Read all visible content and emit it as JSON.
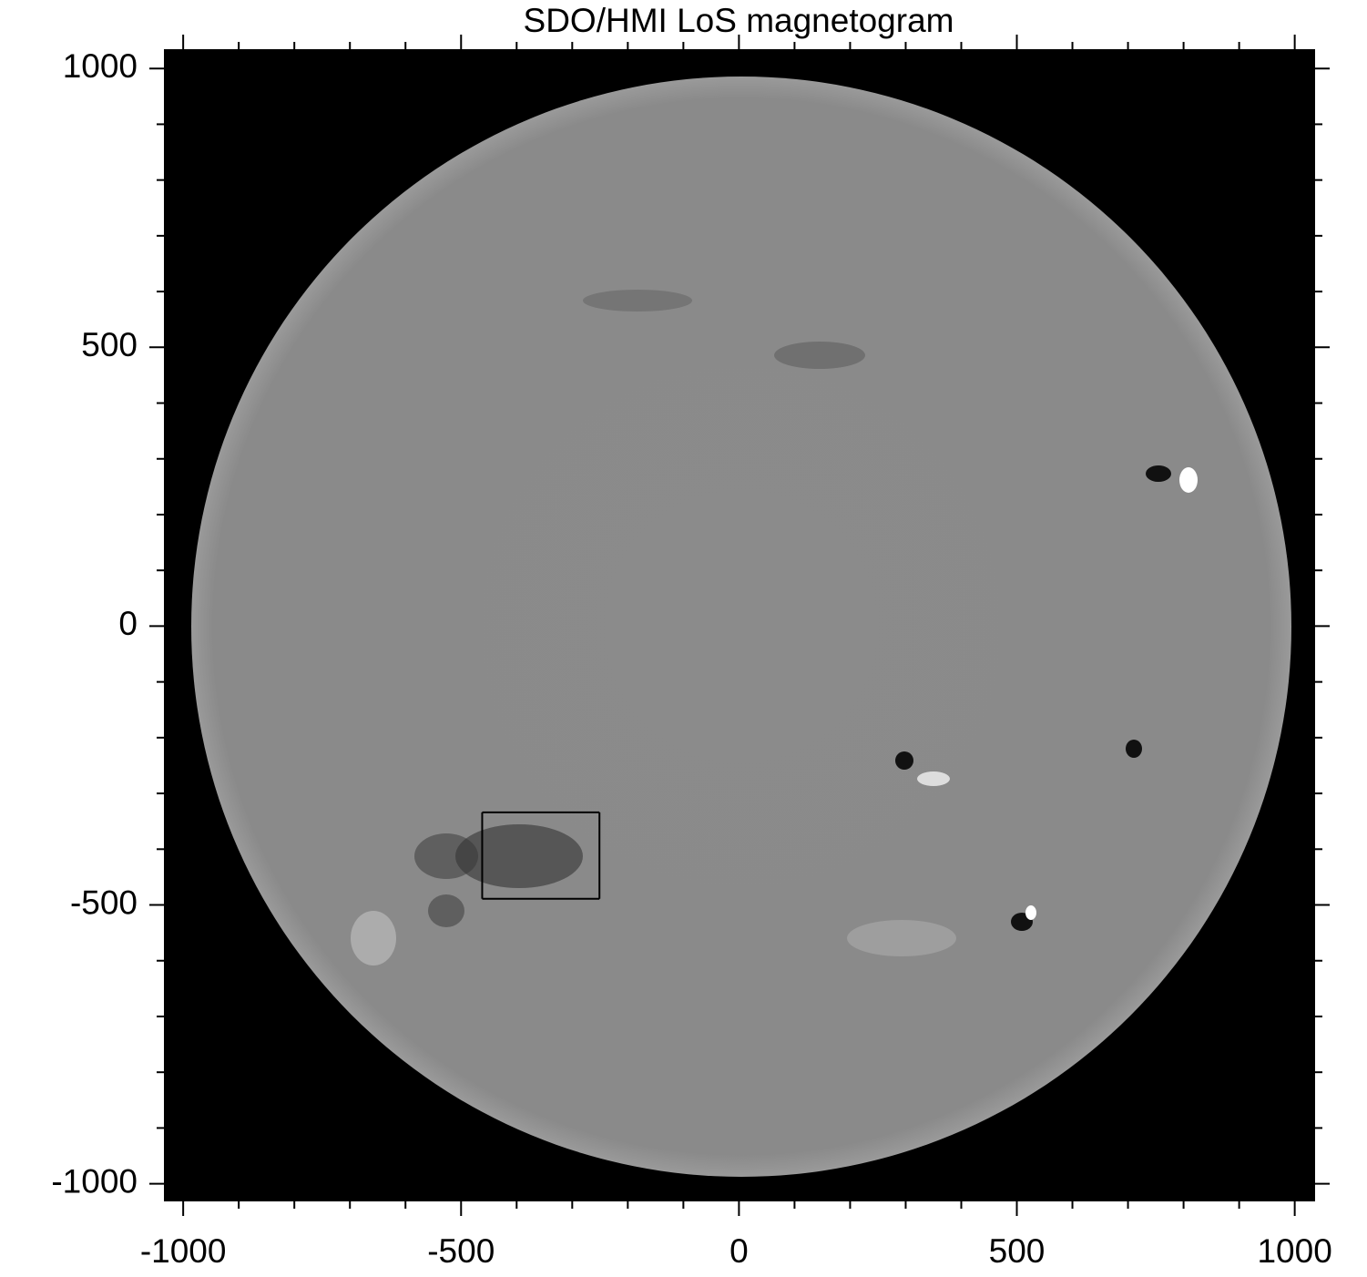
{
  "chart_data": {
    "type": "image",
    "title": "SDO/HMI LoS magnetogram",
    "xlim": [
      -1033,
      1035
    ],
    "ylim": [
      -1030,
      1033
    ],
    "xticks": [
      -1000,
      -500,
      0,
      500,
      1000
    ],
    "yticks": [
      -1000,
      -500,
      0,
      500,
      1000
    ],
    "xminor_ticks": [
      -900,
      -800,
      -700,
      -600,
      -400,
      -300,
      -200,
      -100,
      100,
      200,
      300,
      400,
      600,
      700,
      800,
      900
    ],
    "yminor_ticks": [
      -900,
      -800,
      -700,
      -600,
      -400,
      -300,
      -200,
      -100,
      100,
      200,
      300,
      400,
      600,
      700,
      800,
      900
    ],
    "region": {
      "x": [
        -462,
        -251
      ],
      "y": [
        -489,
        -334
      ],
      "color": "#000000"
    }
  }
}
